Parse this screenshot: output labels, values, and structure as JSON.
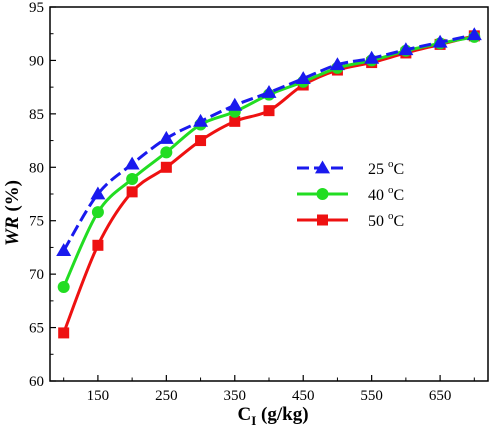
{
  "chart_data": {
    "type": "line",
    "xlabel": {
      "main": "C",
      "sub": "I",
      "rest": " (g/kg)"
    },
    "ylabel": {
      "italic": "WR",
      "rest": " (%)"
    },
    "xlim": [
      80,
      720
    ],
    "ylim": [
      60,
      95
    ],
    "xticks": [
      150,
      250,
      350,
      450,
      550,
      650
    ],
    "yticks": [
      60,
      65,
      70,
      75,
      80,
      85,
      90,
      95
    ],
    "grid": false,
    "legend_position": "center-right",
    "x": [
      100,
      150,
      200,
      250,
      300,
      350,
      400,
      450,
      500,
      550,
      600,
      650,
      700
    ],
    "series": [
      {
        "name": "25 °C",
        "label_num": "25",
        "label_sup": "o",
        "label_unit": "C",
        "color": "#1a1aee",
        "marker": "triangle",
        "dash": "dashed",
        "values": [
          72.2,
          77.5,
          80.3,
          82.7,
          84.3,
          85.8,
          87.0,
          88.3,
          89.6,
          90.2,
          91.0,
          91.7,
          92.4
        ]
      },
      {
        "name": "40 °C",
        "label_num": "40",
        "label_sup": "o",
        "label_unit": "C",
        "color": "#22dd22",
        "marker": "circle",
        "dash": "solid",
        "values": [
          68.8,
          75.8,
          78.9,
          81.4,
          84.0,
          85.2,
          86.8,
          88.0,
          89.3,
          90.0,
          90.9,
          91.6,
          92.2
        ]
      },
      {
        "name": "50 °C",
        "label_num": "50",
        "label_sup": "o",
        "label_unit": "C",
        "color": "#ee1111",
        "marker": "square",
        "dash": "solid",
        "values": [
          64.5,
          72.7,
          77.7,
          80.0,
          82.5,
          84.3,
          85.3,
          87.7,
          89.1,
          89.8,
          90.7,
          91.5,
          92.3
        ]
      }
    ]
  }
}
